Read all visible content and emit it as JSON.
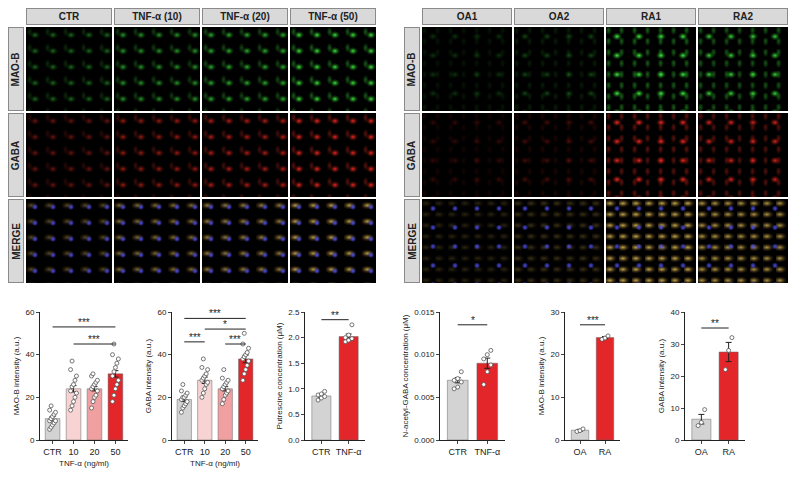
{
  "images": [
    {
      "columns": [
        "CTR",
        "TNF-α (10)",
        "TNF-α (20)",
        "TNF-α (50)"
      ],
      "rows": [
        "MAO-B",
        "GABA",
        "MERGE"
      ]
    },
    {
      "columns": [
        "OA1",
        "OA2",
        "RA1",
        "RA2"
      ],
      "rows": [
        "MAO-B",
        "GABA",
        "MERGE"
      ]
    }
  ],
  "chart_data": [
    {
      "type": "bar",
      "y_label": "MAO-B intensity (a.u.)",
      "x_label": "TNF-α (ng/ml)",
      "categories": [
        "CTR",
        "10",
        "20",
        "50"
      ],
      "values": [
        10,
        24,
        24,
        31
      ],
      "errors": [
        1,
        1.5,
        1,
        1.5
      ],
      "points": [
        [
          5,
          6,
          7,
          8,
          9,
          9,
          10,
          11,
          12,
          13,
          14,
          16
        ],
        [
          14,
          16,
          18,
          20,
          22,
          23,
          25,
          26,
          28,
          30,
          33,
          37
        ],
        [
          15,
          18,
          20,
          21,
          23,
          24,
          25,
          26,
          27,
          28,
          30,
          31
        ],
        [
          18,
          21,
          24,
          26,
          28,
          30,
          32,
          34,
          36,
          38,
          40,
          45
        ]
      ],
      "colors": [
        "#d3d3d3",
        "#f8d3d3",
        "#f0a0a0",
        "#e3262a"
      ],
      "ylim": [
        0,
        60
      ],
      "yticks": [
        0,
        20,
        40,
        60
      ],
      "significance": [
        {
          "from": 0,
          "to": 3,
          "y": 53,
          "label": "***"
        },
        {
          "from": 1,
          "to": 3,
          "y": 45,
          "label": "***"
        }
      ]
    },
    {
      "type": "bar",
      "y_label": "GABA intensity (a.u.)",
      "x_label": "TNF-α (ng/ml)",
      "categories": [
        "CTR",
        "10",
        "20",
        "50"
      ],
      "values": [
        19,
        28,
        24,
        38
      ],
      "errors": [
        1,
        1.5,
        1,
        1.8
      ],
      "points": [
        [
          13,
          15,
          16,
          17,
          18,
          19,
          20,
          20,
          21,
          22,
          23,
          26
        ],
        [
          20,
          22,
          24,
          26,
          27,
          28,
          29,
          30,
          31,
          33,
          34,
          38
        ],
        [
          17,
          19,
          21,
          22,
          23,
          24,
          25,
          26,
          27,
          28,
          29,
          33
        ],
        [
          28,
          31,
          33,
          35,
          37,
          38,
          39,
          40,
          41,
          43,
          45,
          50
        ]
      ],
      "colors": [
        "#d3d3d3",
        "#f8d3d3",
        "#f0a0a0",
        "#e3262a"
      ],
      "ylim": [
        0,
        60
      ],
      "yticks": [
        0,
        20,
        40,
        60
      ],
      "significance": [
        {
          "from": 0,
          "to": 3,
          "y": 57,
          "label": "***"
        },
        {
          "from": 1,
          "to": 3,
          "y": 52,
          "label": "*"
        },
        {
          "from": 0,
          "to": 1,
          "y": 46,
          "label": "***"
        },
        {
          "from": 2,
          "to": 3,
          "y": 45,
          "label": "***"
        }
      ]
    },
    {
      "type": "bar",
      "y_label": "Putrescine concentration (μM)",
      "categories": [
        "CTR",
        "TNF-α"
      ],
      "values": [
        0.86,
        2.02
      ],
      "errors": [
        0.03,
        0.05
      ],
      "points": [
        [
          0.78,
          0.82,
          0.85,
          0.88,
          0.9,
          0.95
        ],
        [
          1.92,
          1.95,
          1.98,
          2.0,
          2.05,
          2.25
        ]
      ],
      "colors": [
        "#d3d3d3",
        "#e3262a"
      ],
      "ylim": [
        0,
        2.5
      ],
      "yticks": [
        {
          "value": 0,
          "label": "0.0"
        },
        0.5,
        {
          "value": 1,
          "label": "1.0"
        },
        1.5,
        {
          "value": 2,
          "label": "2.0"
        },
        2.5
      ],
      "significance": [
        {
          "from": 0,
          "to": 1,
          "y": 2.35,
          "label": "**"
        }
      ]
    },
    {
      "type": "bar",
      "y_label": "N-acetyl-GABA concentration (μM)",
      "categories": [
        "CTR",
        "TNF-α"
      ],
      "values": [
        0.007,
        0.009
      ],
      "errors": [
        0.0003,
        0.0006
      ],
      "points": [
        [
          0.006,
          0.0062,
          0.0068,
          0.007,
          0.0072,
          0.008
        ],
        [
          0.0065,
          0.008,
          0.0088,
          0.0095,
          0.01,
          0.0105
        ]
      ],
      "colors": [
        "#d3d3d3",
        "#e3262a"
      ],
      "ylim": [
        0,
        0.015
      ],
      "yticks": [
        {
          "value": 0,
          "label": "0.000"
        },
        {
          "value": 0.005,
          "label": "0.005"
        },
        {
          "value": 0.01,
          "label": "0.010"
        },
        {
          "value": 0.015,
          "label": "0.015"
        }
      ],
      "significance": [
        {
          "from": 0,
          "to": 1,
          "y": 0.0135,
          "label": "*"
        }
      ]
    },
    {
      "type": "bar",
      "y_label": "MAO-B intensity (a.u.)",
      "categories": [
        "OA",
        "RA"
      ],
      "values": [
        2.3,
        24
      ],
      "errors": [
        0.2,
        0.25
      ],
      "points": [
        [
          2.0,
          2.2,
          2.6
        ],
        [
          23.6,
          23.9,
          24.4
        ]
      ],
      "colors": [
        "#d3d3d3",
        "#e3262a"
      ],
      "ylim": [
        0,
        30
      ],
      "yticks": [
        0,
        10,
        20,
        30
      ],
      "significance": [
        {
          "from": 0,
          "to": 1,
          "y": 27,
          "label": "***"
        }
      ]
    },
    {
      "type": "bar",
      "y_label": "GABA intensity (a.u.)",
      "categories": [
        "OA",
        "RA"
      ],
      "values": [
        6.5,
        27.5
      ],
      "errors": [
        1.5,
        3
      ],
      "points": [
        [
          4.5,
          5.5,
          9.5
        ],
        [
          22,
          28,
          32
        ]
      ],
      "colors": [
        "#d3d3d3",
        "#e3262a"
      ],
      "ylim": [
        0,
        40
      ],
      "yticks": [
        0,
        10,
        20,
        30,
        40
      ],
      "significance": [
        {
          "from": 0,
          "to": 1,
          "y": 35,
          "label": "**"
        }
      ]
    }
  ]
}
